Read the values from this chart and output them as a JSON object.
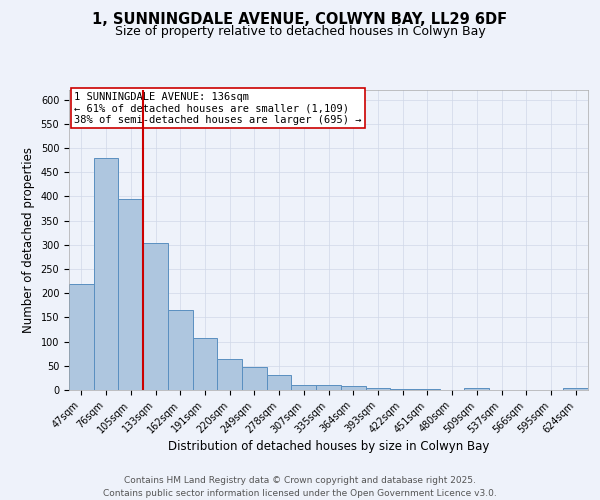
{
  "title_line1": "1, SUNNINGDALE AVENUE, COLWYN BAY, LL29 6DF",
  "title_line2": "Size of property relative to detached houses in Colwyn Bay",
  "xlabel": "Distribution of detached houses by size in Colwyn Bay",
  "ylabel": "Number of detached properties",
  "categories": [
    "47sqm",
    "76sqm",
    "105sqm",
    "133sqm",
    "162sqm",
    "191sqm",
    "220sqm",
    "249sqm",
    "278sqm",
    "307sqm",
    "335sqm",
    "364sqm",
    "393sqm",
    "422sqm",
    "451sqm",
    "480sqm",
    "509sqm",
    "537sqm",
    "566sqm",
    "595sqm",
    "624sqm"
  ],
  "values": [
    220,
    480,
    395,
    303,
    165,
    107,
    65,
    48,
    32,
    10,
    10,
    9,
    5,
    2,
    2,
    1,
    4,
    1,
    1,
    1,
    4
  ],
  "bar_color": "#aec6df",
  "bar_edge_color": "#5a8fc0",
  "grid_color": "#d0d8e8",
  "background_color": "#eef2fa",
  "annotation_text": "1 SUNNINGDALE AVENUE: 136sqm\n← 61% of detached houses are smaller (1,109)\n38% of semi-detached houses are larger (695) →",
  "annotation_box_color": "#ffffff",
  "annotation_box_edge": "#cc0000",
  "vline_x_index": 3,
  "vline_color": "#cc0000",
  "ylim": [
    0,
    620
  ],
  "yticks": [
    0,
    50,
    100,
    150,
    200,
    250,
    300,
    350,
    400,
    450,
    500,
    550,
    600
  ],
  "footer_line1": "Contains HM Land Registry data © Crown copyright and database right 2025.",
  "footer_line2": "Contains public sector information licensed under the Open Government Licence v3.0.",
  "title_fontsize": 10.5,
  "subtitle_fontsize": 9,
  "axis_label_fontsize": 8.5,
  "tick_fontsize": 7,
  "annotation_fontsize": 7.5,
  "footer_fontsize": 6.5
}
